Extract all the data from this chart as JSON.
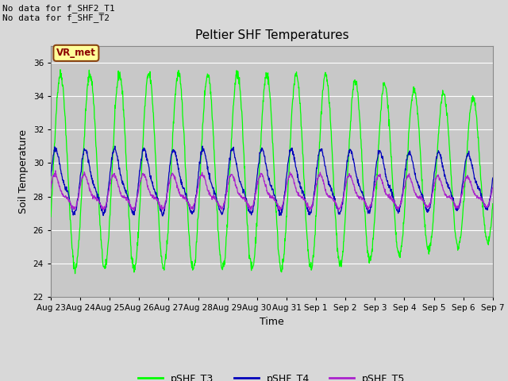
{
  "title": "Peltier SHF Temperatures",
  "xlabel": "Time",
  "ylabel": "Soil Temperature",
  "ylim": [
    22,
    37
  ],
  "yticks": [
    22,
    24,
    26,
    28,
    30,
    32,
    34,
    36
  ],
  "background_color": "#d8d8d8",
  "plot_bg_color": "#c8c8c8",
  "annotation_text": "No data for f_SHF2_T1\nNo data for f_SHF_T2",
  "vr_met_label": "VR_met",
  "legend_entries": [
    "pSHF_T3",
    "pSHF_T4",
    "pSHF_T5"
  ],
  "legend_colors": [
    "#00ff00",
    "#0000bb",
    "#aa22cc"
  ],
  "line_colors": [
    "#00ff00",
    "#0000bb",
    "#aa22cc"
  ],
  "n_days": 15,
  "start_day": 23,
  "T3_amplitude": 5.8,
  "T3_mean": 29.5,
  "T4_amplitude": 1.7,
  "T4_mean": 28.8,
  "T5_amplitude": 0.85,
  "T5_mean": 28.2
}
